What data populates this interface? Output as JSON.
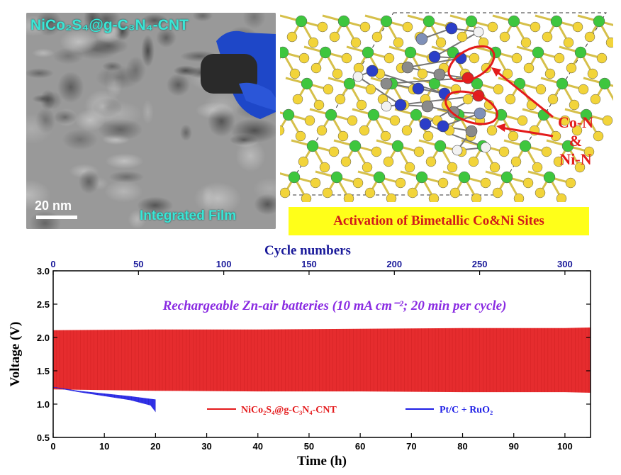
{
  "tem_panel": {
    "title": "NiCo₂S₄@g-C₃N₄-CNT",
    "scale_label": "20 nm",
    "caption": "Integrated Film"
  },
  "structure_panel": {
    "annotation_line1": "Co-N",
    "annotation_line2": "&",
    "annotation_line3": "Ni-N",
    "banner": "Activation of Bimetallic Co&Ni Sites",
    "atom_colors": {
      "S": "#f2d43a",
      "Ni": "#3ec63e",
      "Co": "#7f90b8",
      "N": "#2b3ec8",
      "C": "#8a8a8a",
      "H": "#f2f2f2",
      "O": "#e02020"
    }
  },
  "chart_data": {
    "type": "area",
    "title": "",
    "annotation": "Rechargeable Zn-air batteries (10 mA cm⁻²; 20 min per cycle)",
    "xlabel": "Time (h)",
    "ylabel": "Voltage (V)",
    "x2label": "Cycle numbers",
    "xlim": [
      0,
      105
    ],
    "ylim": [
      0.5,
      3.0
    ],
    "x2lim": [
      0,
      315
    ],
    "xticks": [
      0,
      10,
      20,
      30,
      40,
      50,
      60,
      70,
      80,
      90,
      100
    ],
    "yticks": [
      0.5,
      1.0,
      1.5,
      2.0,
      2.5,
      3.0
    ],
    "x2ticks": [
      0,
      50,
      100,
      150,
      200,
      250,
      300
    ],
    "series": [
      {
        "name": "NiCo₂S₄@g-C₃N₄-CNT",
        "color": "#e41a1c",
        "x": [
          0,
          20,
          40,
          60,
          80,
          100,
          105
        ],
        "upper": [
          2.11,
          2.12,
          2.12,
          2.13,
          2.14,
          2.14,
          2.15
        ],
        "lower": [
          1.22,
          1.2,
          1.19,
          1.19,
          1.18,
          1.18,
          1.17
        ]
      },
      {
        "name": "Pt/C + RuO₂",
        "color": "#1f1fe6",
        "x": [
          0,
          5,
          10,
          15,
          19,
          20
        ],
        "upper": [
          1.26,
          1.2,
          1.16,
          1.12,
          1.08,
          1.07
        ],
        "lower": [
          1.25,
          1.18,
          1.12,
          1.06,
          0.98,
          0.88
        ]
      }
    ],
    "legend": "bottom-center"
  }
}
